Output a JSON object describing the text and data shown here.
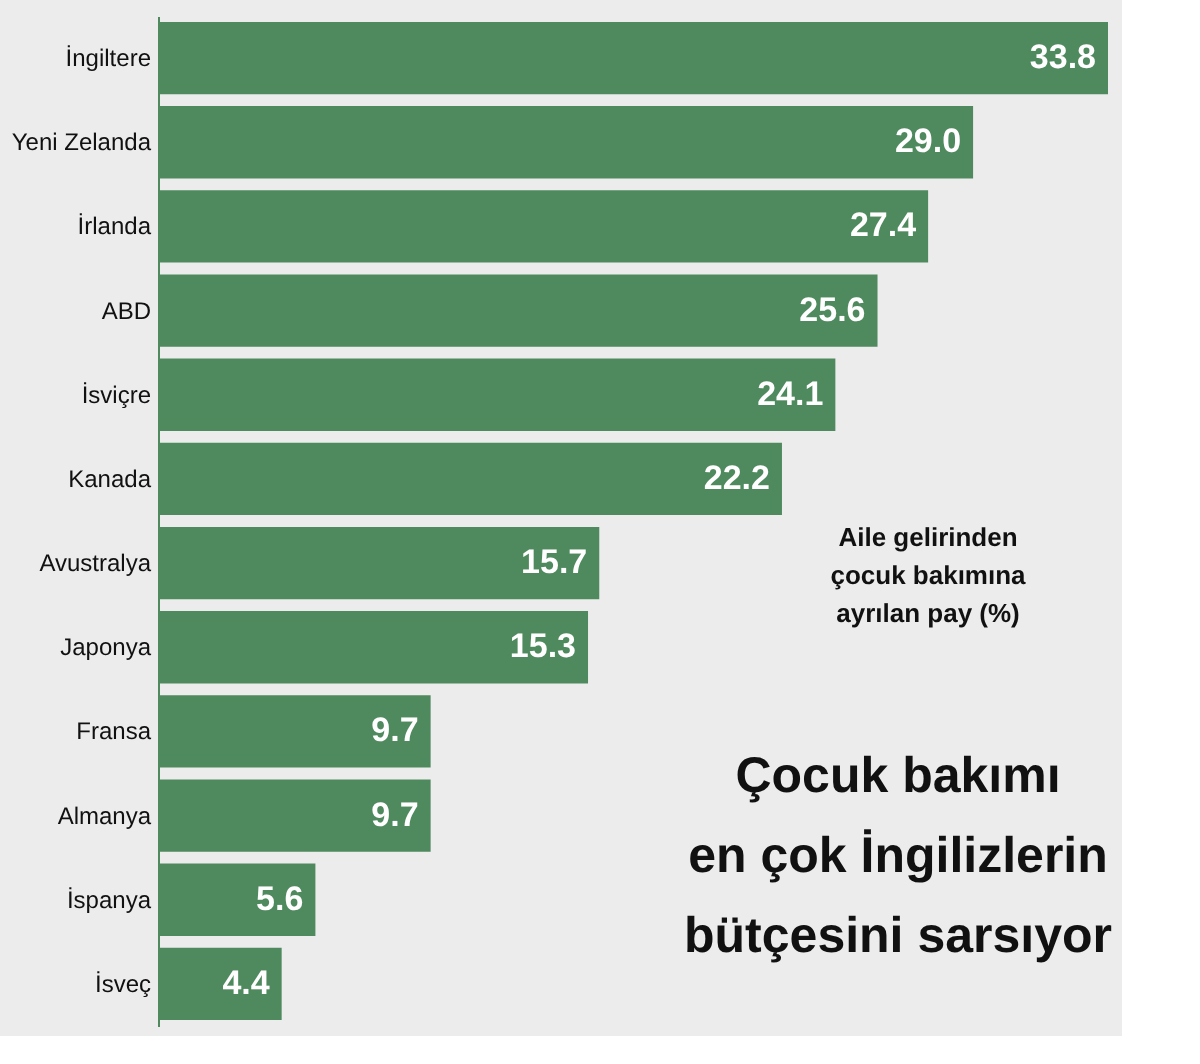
{
  "chart_data": {
    "type": "bar",
    "orientation": "horizontal",
    "title": "Çocuk bakımı\nen çok İngilizlerin\nbütçesini sarsıyor",
    "subtitle": "Aile gelirinden\nçocuk bakımına\nayrılan pay (%)",
    "categories": [
      "İngiltere",
      "Yeni Zelanda",
      "İrlanda",
      "ABD",
      "İsviçre",
      "Kanada",
      "Avustralya",
      "Japonya",
      "Fransa",
      "Almanya",
      "İspanya",
      "İsveç"
    ],
    "values": [
      33.8,
      29.0,
      27.4,
      25.6,
      24.1,
      22.2,
      15.7,
      15.3,
      9.7,
      9.7,
      5.6,
      4.4
    ],
    "value_labels": [
      "33.8",
      "29.0",
      "27.4",
      "25.6",
      "24.1",
      "22.2",
      "15.7",
      "15.3",
      "9.7",
      "9.7",
      "5.6",
      "4.4"
    ],
    "color": "#4f8a5f"
  }
}
